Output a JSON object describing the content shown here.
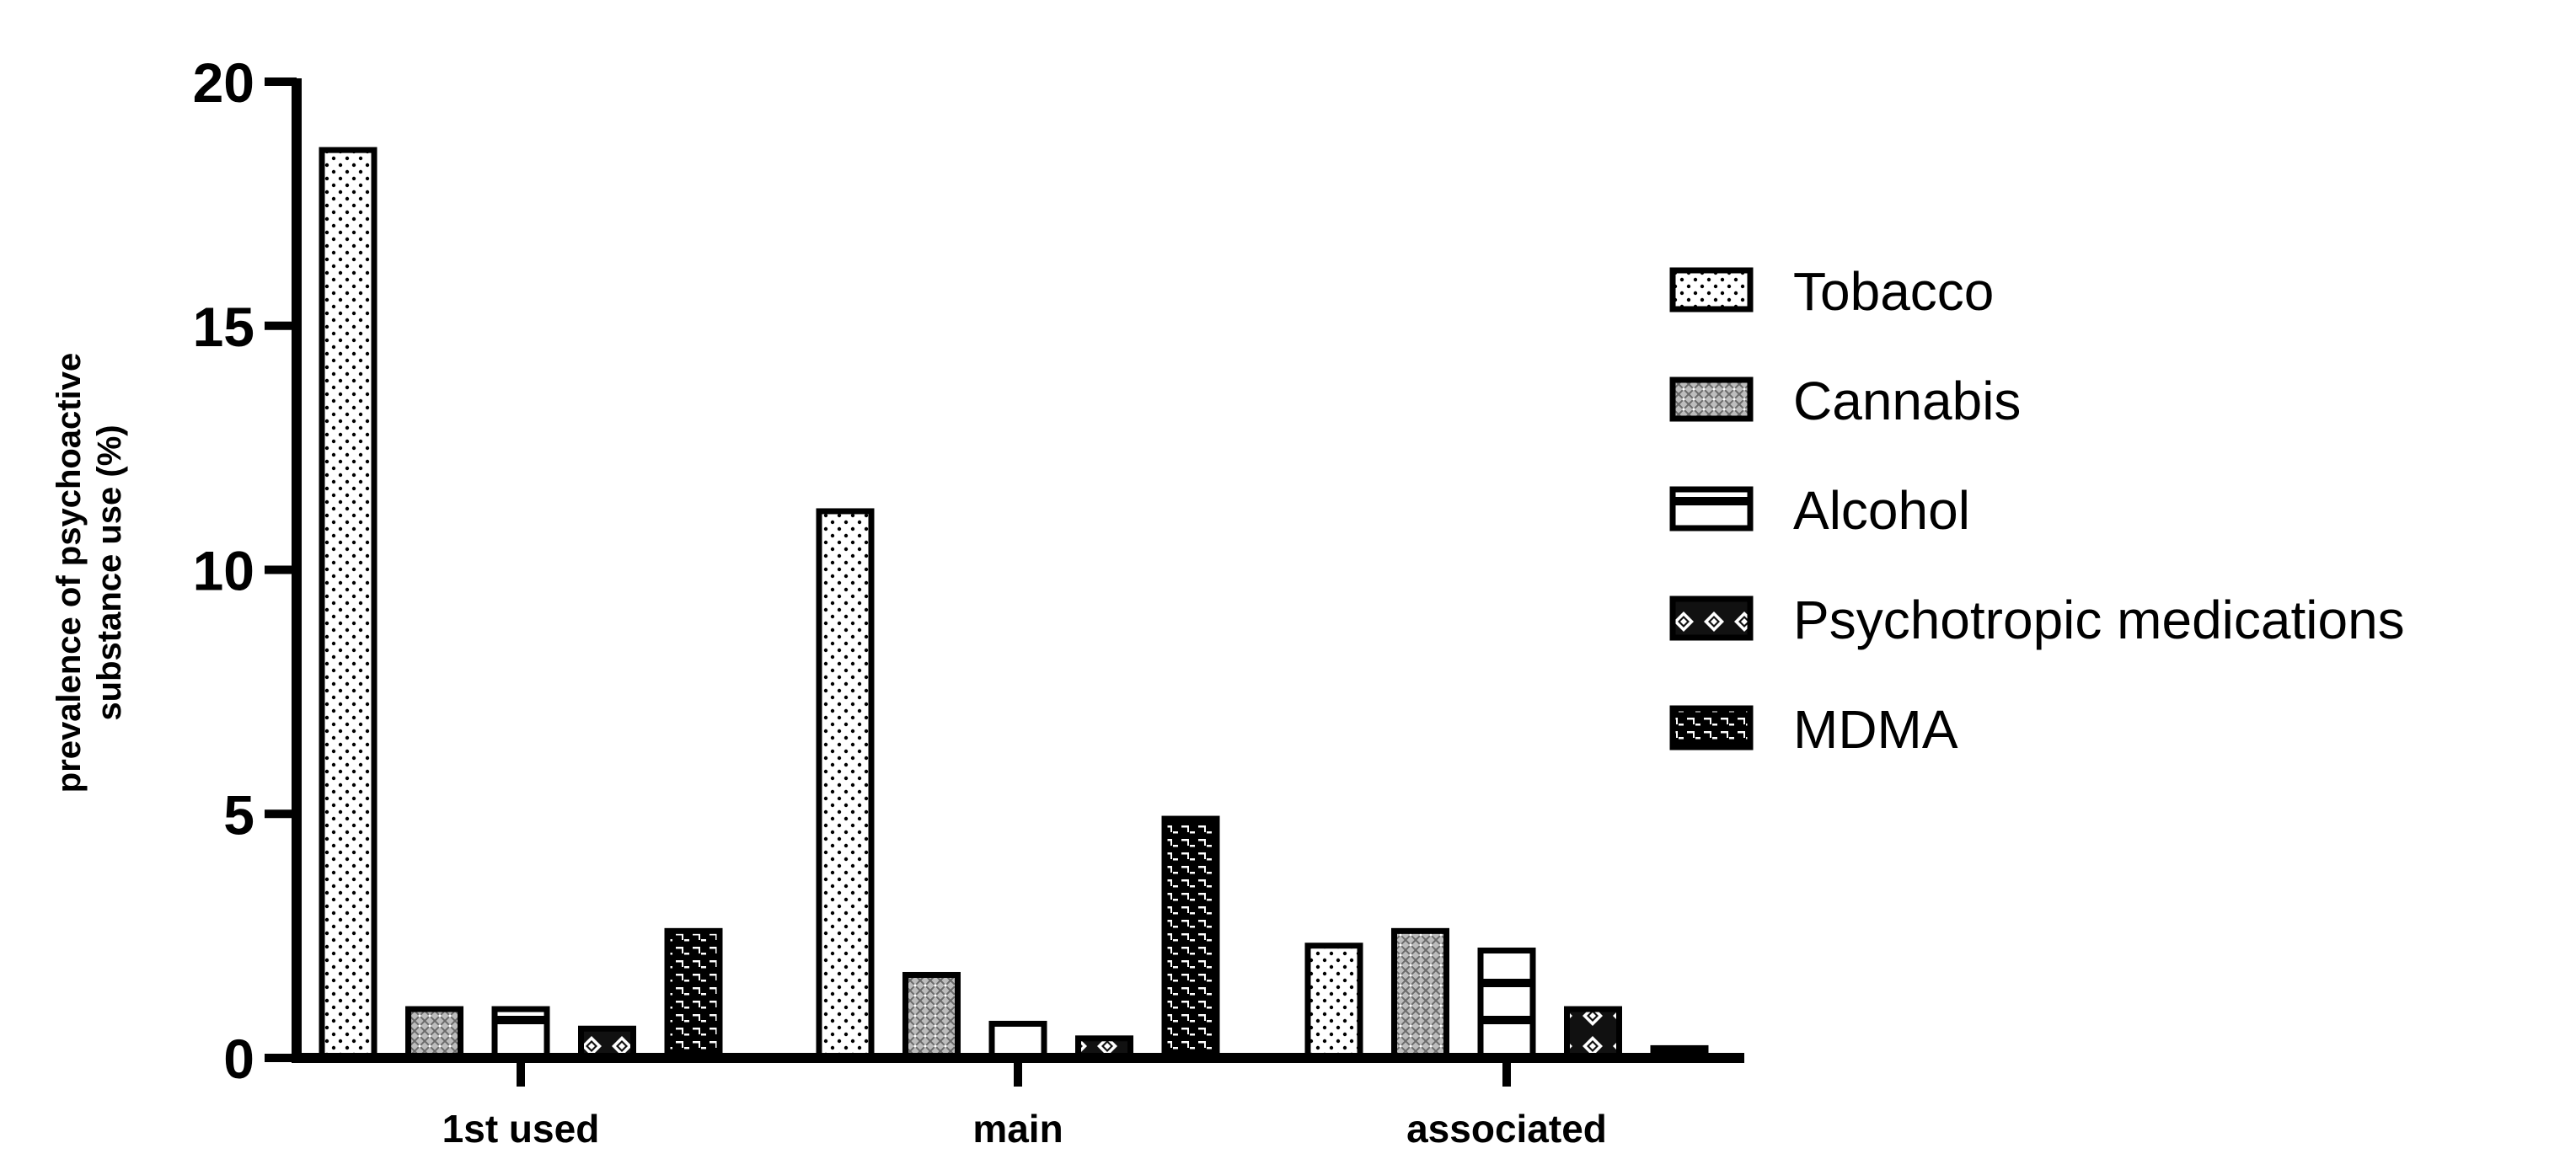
{
  "chart_data": {
    "type": "bar",
    "categories": [
      "1st used",
      "main",
      "associated"
    ],
    "series": [
      {
        "name": "Tobacco",
        "values": [
          18.6,
          11.2,
          2.3
        ],
        "pattern": "dots"
      },
      {
        "name": "Cannabis",
        "values": [
          1.0,
          1.7,
          2.6
        ],
        "pattern": "crosshatch"
      },
      {
        "name": "Alcohol",
        "values": [
          1.0,
          0.7,
          2.2
        ],
        "pattern": "stripes"
      },
      {
        "name": "Psychotropic medications",
        "values": [
          0.6,
          0.4,
          1.0
        ],
        "pattern": "diamonds"
      },
      {
        "name": "MDMA",
        "values": [
          2.6,
          4.9,
          0.2
        ],
        "pattern": "dashes"
      }
    ],
    "title": "",
    "xlabel": "",
    "ylabel_lines": [
      "prevalence of psychoactive",
      "substance use (%)"
    ],
    "ylim": [
      0,
      20
    ],
    "yticks": [
      0,
      5,
      10,
      15,
      20
    ],
    "grid": false,
    "legend_position": "right",
    "colors": {
      "stroke": "#000000",
      "background": "#ffffff"
    }
  }
}
